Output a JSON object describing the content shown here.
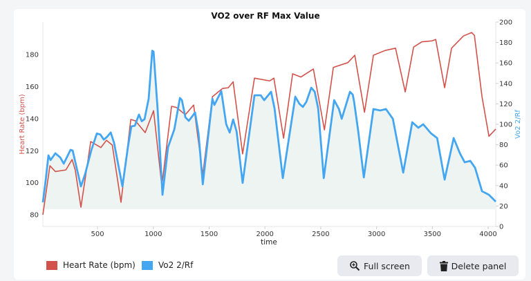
{
  "colors": {
    "heart_rate": "#d2514b",
    "vo2": "#44a6f0",
    "fill": "#edf4f1"
  },
  "chart_data": {
    "type": "line",
    "title": "VO2 over RF Max Value",
    "xlabel": "time",
    "ylabel_left": "Heart Rate (bpm)",
    "ylabel_right": "Vo2 2/Rf",
    "xlim": [
      10,
      4068
    ],
    "ylim_left": [
      72.7,
      200.3
    ],
    "ylim_right": [
      0,
      200
    ],
    "x_ticks": [
      500,
      1000,
      1500,
      2000,
      2500,
      3000,
      3500,
      4000
    ],
    "y_left_ticks": [
      80,
      100,
      120,
      140,
      160,
      180
    ],
    "y_right_ticks": [
      0,
      20,
      40,
      60,
      80,
      100,
      120,
      140,
      160,
      180,
      200
    ],
    "grid": false,
    "legend_position": "bottom-left",
    "series": [
      {
        "name": "Heart Rate (bpm)",
        "axis": "left",
        "points": [
          [
            10,
            80
          ],
          [
            73,
            110.6
          ],
          [
            122,
            107
          ],
          [
            216,
            108
          ],
          [
            272,
            114.5
          ],
          [
            300,
            108
          ],
          [
            351,
            84.7
          ],
          [
            439,
            125.7
          ],
          [
            530,
            122
          ],
          [
            580,
            126.5
          ],
          [
            632,
            123.5
          ],
          [
            710,
            87.8
          ],
          [
            798,
            139.5
          ],
          [
            840,
            138.6
          ],
          [
            927,
            131.3
          ],
          [
            1002,
            145
          ],
          [
            1076,
            98
          ],
          [
            1163,
            147.7
          ],
          [
            1206,
            147
          ],
          [
            1287,
            142.5
          ],
          [
            1361,
            148.5
          ],
          [
            1443,
            105
          ],
          [
            1529,
            153.7
          ],
          [
            1621,
            158.9
          ],
          [
            1671,
            159.3
          ],
          [
            1715,
            163
          ],
          [
            1800,
            118
          ],
          [
            1906,
            165.3
          ],
          [
            2043,
            163.6
          ],
          [
            2080,
            165.3
          ],
          [
            2167,
            127.8
          ],
          [
            2248,
            168
          ],
          [
            2322,
            166
          ],
          [
            2434,
            171
          ],
          [
            2533,
            133
          ],
          [
            2613,
            172
          ],
          [
            2743,
            175
          ],
          [
            2805,
            179.6
          ],
          [
            2892,
            144
          ],
          [
            2972,
            179.6
          ],
          [
            3077,
            182.6
          ],
          [
            3170,
            184
          ],
          [
            3257,
            156.7
          ],
          [
            3332,
            184.7
          ],
          [
            3406,
            188
          ],
          [
            3499,
            188.6
          ],
          [
            3530,
            189.5
          ],
          [
            3610,
            159.3
          ],
          [
            3672,
            184
          ],
          [
            3778,
            191.6
          ],
          [
            3852,
            193.8
          ],
          [
            3877,
            192
          ],
          [
            3945,
            153.7
          ],
          [
            4007,
            129
          ],
          [
            4068,
            133.5
          ]
        ]
      },
      {
        "name": "Vo2 2/Rf",
        "axis": "right",
        "points": [
          [
            10,
            23.6
          ],
          [
            35,
            45
          ],
          [
            60,
            69.6
          ],
          [
            79,
            65
          ],
          [
            122,
            71.6
          ],
          [
            165,
            67.6
          ],
          [
            197,
            61.5
          ],
          [
            258,
            75
          ],
          [
            277,
            74.3
          ],
          [
            351,
            39.2
          ],
          [
            389,
            51.4
          ],
          [
            445,
            75
          ],
          [
            494,
            91
          ],
          [
            525,
            90
          ],
          [
            556,
            85
          ],
          [
            586,
            87.8
          ],
          [
            618,
            92
          ],
          [
            648,
            81.8
          ],
          [
            723,
            39.2
          ],
          [
            772,
            77.7
          ],
          [
            803,
            98
          ],
          [
            834,
            98.6
          ],
          [
            871,
            109.5
          ],
          [
            896,
            103
          ],
          [
            921,
            105
          ],
          [
            958,
            125
          ],
          [
            990,
            172
          ],
          [
            1002,
            171
          ],
          [
            1039,
            113.5
          ],
          [
            1082,
            31
          ],
          [
            1132,
            77.7
          ],
          [
            1188,
            95
          ],
          [
            1238,
            125.7
          ],
          [
            1256,
            123.6
          ],
          [
            1287,
            106.8
          ],
          [
            1318,
            103.4
          ],
          [
            1374,
            111.5
          ],
          [
            1405,
            91
          ],
          [
            1443,
            41.2
          ],
          [
            1529,
            125
          ],
          [
            1547,
            119
          ],
          [
            1609,
            132.4
          ],
          [
            1653,
            100
          ],
          [
            1684,
            91.9
          ],
          [
            1715,
            104.7
          ],
          [
            1746,
            93
          ],
          [
            1800,
            42.6
          ],
          [
            1906,
            128.4
          ],
          [
            1962,
            128.4
          ],
          [
            1993,
            123.6
          ],
          [
            2055,
            131.8
          ],
          [
            2086,
            115.5
          ],
          [
            2160,
            47.3
          ],
          [
            2272,
            127
          ],
          [
            2309,
            120
          ],
          [
            2340,
            117
          ],
          [
            2371,
            122
          ],
          [
            2415,
            135.8
          ],
          [
            2446,
            131.8
          ],
          [
            2477,
            115.5
          ],
          [
            2527,
            47.3
          ],
          [
            2620,
            123.6
          ],
          [
            2663,
            114.9
          ],
          [
            2688,
            105.4
          ],
          [
            2762,
            131.8
          ],
          [
            2799,
            122
          ],
          [
            2787,
            129
          ],
          [
            2836,
            93
          ],
          [
            2886,
            48
          ],
          [
            2972,
            114.9
          ],
          [
            3034,
            113.5
          ],
          [
            3084,
            114.9
          ],
          [
            3146,
            105.4
          ],
          [
            3239,
            52.7
          ],
          [
            3320,
            102
          ],
          [
            3375,
            96.6
          ],
          [
            3418,
            100
          ],
          [
            3487,
            91.2
          ],
          [
            3543,
            86.5
          ],
          [
            3610,
            45.9
          ],
          [
            3691,
            86.5
          ],
          [
            3747,
            71.6
          ],
          [
            3790,
            62.8
          ],
          [
            3840,
            64.2
          ],
          [
            3883,
            57.4
          ],
          [
            3945,
            34.5
          ],
          [
            4007,
            31
          ],
          [
            4068,
            24.3
          ]
        ]
      }
    ],
    "fill_baseline_right": 17
  },
  "legend": [
    {
      "label": "Heart Rate (bpm)"
    },
    {
      "label": "Vo2 2/Rf"
    }
  ],
  "buttons": {
    "fullscreen": "Full screen",
    "delete": "Delete panel"
  },
  "icons": {
    "fullscreen": "zoom-in-icon",
    "delete": "trash-icon"
  }
}
